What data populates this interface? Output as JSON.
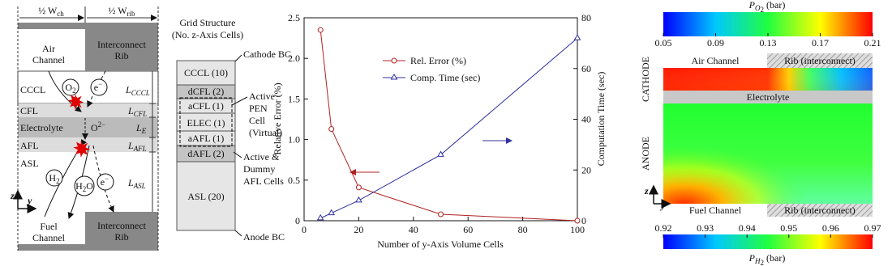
{
  "diagram": {
    "widths": [
      {
        "text": "½ W",
        "sub": "ch"
      },
      {
        "text": "½ W",
        "sub": "rib"
      }
    ],
    "air_channel": [
      "Air",
      "Channel"
    ],
    "rib_top": [
      "Interconnect",
      "Rib"
    ],
    "fuel_channel": [
      "Fuel",
      "Channel"
    ],
    "rib_bottom": [
      "Interconnect",
      "Rib"
    ],
    "layers": [
      "CCCL",
      "CFL",
      "Electrolyte",
      "AFL",
      "ASL"
    ],
    "thickness": [
      {
        "text": "L",
        "sub": "CCCL"
      },
      {
        "text": "L",
        "sub": "CFL"
      },
      {
        "text": "L",
        "sub": "E"
      },
      {
        "text": "L",
        "sub": "AFL"
      },
      {
        "text": "L",
        "sub": "ASL"
      }
    ],
    "species": {
      "o2": {
        "text": "O",
        "sub": "2"
      },
      "e_top": {
        "text": "e",
        "sup": "−"
      },
      "oxide": {
        "text": "O",
        "sup": "2−"
      },
      "h2": {
        "text": "H",
        "sub": "2"
      },
      "h2o": {
        "text": "H",
        "sub": "2",
        "post": "O"
      },
      "e_bottom": {
        "text": "e",
        "sup": "−"
      }
    },
    "axes": [
      "z",
      "y"
    ],
    "grid_title": [
      "Grid Structure",
      "(No. z-Axis Cells)"
    ],
    "cathode_bc": "Cathode BC",
    "anode_bc": "Anode BC",
    "cells": [
      "CCCL (10)",
      "dCFL (2)",
      "aCFL (1)",
      "ELEC (1)",
      "aAFL (1)",
      "dAFL (2)",
      "ASL (20)"
    ],
    "active_pen": [
      "Active",
      "PEN",
      "Cell",
      "(Virtual)"
    ],
    "active_afl": [
      "Active &",
      "Dummy",
      "AFL Cells"
    ]
  },
  "chart_data": {
    "type": "line",
    "x_label": "Number of y-Axis Volume Cells",
    "y_label": "Relative Error (%)",
    "y2_label": "Computation Time (sec)",
    "x": [
      6,
      10,
      20,
      50,
      100
    ],
    "series": [
      {
        "name": "Rel. Error (%)",
        "color": "#b02020",
        "marker": "circle",
        "values": [
          2.35,
          1.13,
          0.41,
          0.08,
          0.0
        ]
      },
      {
        "name": "Comp. Time (sec)",
        "color": "#3030a0",
        "marker": "triangle",
        "axis": "y2",
        "values": [
          1,
          3,
          8,
          26,
          72
        ]
      }
    ],
    "xlim": [
      0,
      100
    ],
    "xticks": [
      0,
      20,
      40,
      60,
      80,
      100
    ],
    "ylim": [
      0,
      2.5
    ],
    "yticks": [
      0,
      0.5,
      {
        "value": 1,
        "label": "1.0"
      },
      1.5,
      {
        "value": 2,
        "label": "2.0"
      },
      2.5
    ],
    "y2lim": [
      0,
      80
    ],
    "y2ticks": [
      0,
      20,
      40,
      60,
      80
    ]
  },
  "contour": {
    "top_colorbar": {
      "label": {
        "text": "P",
        "sub": "O",
        "sub2": "2",
        "post": " (bar)"
      },
      "lim": [
        0.05,
        0.21
      ],
      "ticks": [
        0.05,
        0.09,
        0.13,
        0.17,
        0.21
      ]
    },
    "bottom_colorbar": {
      "label": {
        "text": "P",
        "sub": "H",
        "sub2": "2",
        "post": " (bar)"
      },
      "lim": [
        0.92,
        0.97
      ],
      "ticks": [
        0.92,
        0.93,
        0.94,
        0.95,
        0.96,
        0.97
      ]
    },
    "cathode": "CATHODE",
    "anode": "ANODE",
    "air_channel": "Air Channel",
    "rib_top": "Rib (interconnect)",
    "electrolyte": "Electrolyte",
    "fuel_channel": "Fuel Channel",
    "rib_bottom": "Rib (interconnect)",
    "axes": [
      "z",
      "y"
    ]
  }
}
